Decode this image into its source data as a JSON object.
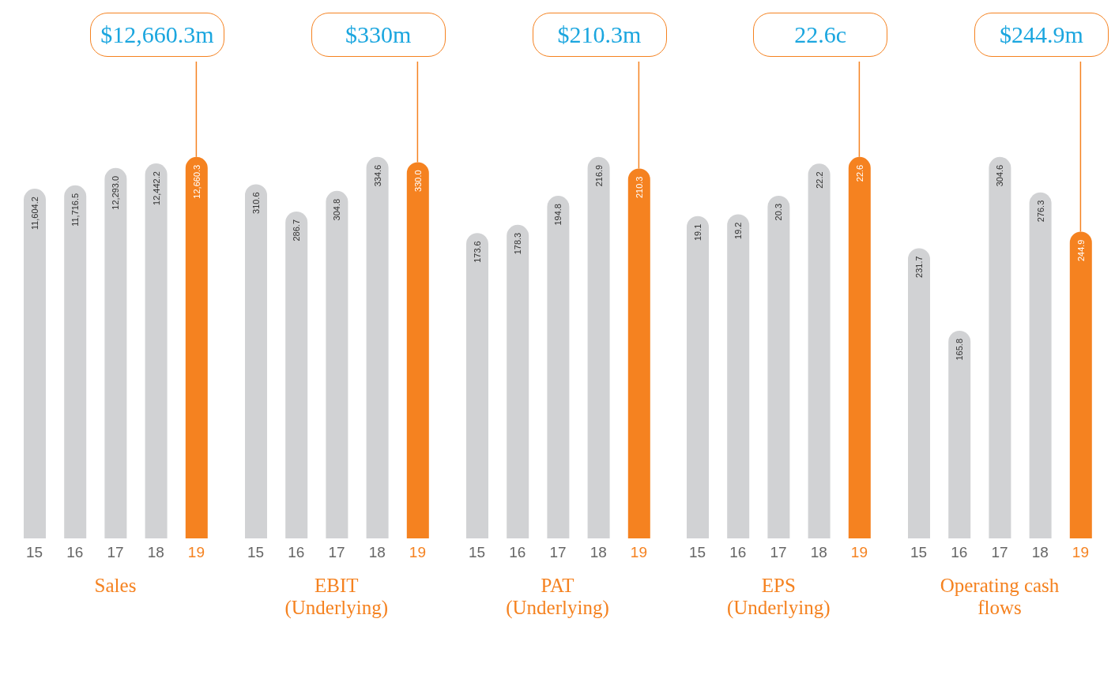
{
  "chart_data": [
    {
      "type": "bar",
      "xlabel": "Sales",
      "categories": [
        "15",
        "16",
        "17",
        "18",
        "19"
      ],
      "values": [
        11604.2,
        11716.5,
        12293.0,
        12442.2,
        12660.3
      ],
      "colors": [
        "#d1d2d4",
        "#d1d2d4",
        "#d1d2d4",
        "#d1d2d4",
        "#f58220"
      ],
      "value_labels": [
        "11,604.2",
        "11,716.5",
        "12,293.0",
        "12,442.2",
        "12,660.3"
      ],
      "tick_labels": "x",
      "annotations": [
        {
          "text": "$12,660.3m",
          "x": "19",
          "y": 12660.3
        }
      ]
    },
    {
      "type": "bar",
      "xlabel": "EBIT (Underlying)",
      "categories": [
        "15",
        "16",
        "17",
        "18",
        "19"
      ],
      "values": [
        310.6,
        286.7,
        304.8,
        334.6,
        330.0
      ],
      "colors": [
        "#d1d2d4",
        "#d1d2d4",
        "#d1d2d4",
        "#d1d2d4",
        "#f58220"
      ],
      "value_labels": [
        "310.6",
        "286.7",
        "304.8",
        "334.6",
        "330.0"
      ],
      "tick_labels": "x",
      "annotations": [
        {
          "text": "$330m",
          "x": "19",
          "y": 330.0
        }
      ]
    },
    {
      "type": "bar",
      "xlabel": "PAT (Underlying)",
      "categories": [
        "15",
        "16",
        "17",
        "18",
        "19"
      ],
      "values": [
        173.6,
        178.3,
        194.8,
        216.9,
        210.3
      ],
      "colors": [
        "#d1d2d4",
        "#d1d2d4",
        "#d1d2d4",
        "#d1d2d4",
        "#f58220"
      ],
      "value_labels": [
        "173.6",
        "178.3",
        "194.8",
        "216.9",
        "210.3"
      ],
      "tick_labels": "x",
      "annotations": [
        {
          "text": "$210.3m",
          "x": "19",
          "y": 210.3
        }
      ]
    },
    {
      "type": "bar",
      "xlabel": "EPS (Underlying)",
      "categories": [
        "15",
        "16",
        "17",
        "18",
        "19"
      ],
      "values": [
        19.1,
        19.2,
        20.3,
        22.2,
        22.6
      ],
      "colors": [
        "#d1d2d4",
        "#d1d2d4",
        "#d1d2d4",
        "#d1d2d4",
        "#f58220"
      ],
      "value_labels": [
        "19.1",
        "19.2",
        "20.3",
        "22.2",
        "22.6"
      ],
      "tick_labels": "x",
      "annotations": [
        {
          "text": "22.6c",
          "x": "19",
          "y": 22.6
        }
      ]
    },
    {
      "type": "bar",
      "xlabel": "Operating cash flows",
      "categories": [
        "15",
        "16",
        "17",
        "18",
        "19"
      ],
      "values": [
        231.7,
        165.8,
        304.6,
        276.3,
        244.9
      ],
      "colors": [
        "#d1d2d4",
        "#d1d2d4",
        "#d1d2d4",
        "#d1d2d4",
        "#f58220"
      ],
      "value_labels": [
        "231.7",
        "165.8",
        "304.6",
        "276.3",
        "244.9"
      ],
      "tick_labels": "x",
      "annotations": [
        {
          "text": "$244.9m",
          "x": "19",
          "y": 244.9
        }
      ]
    }
  ]
}
